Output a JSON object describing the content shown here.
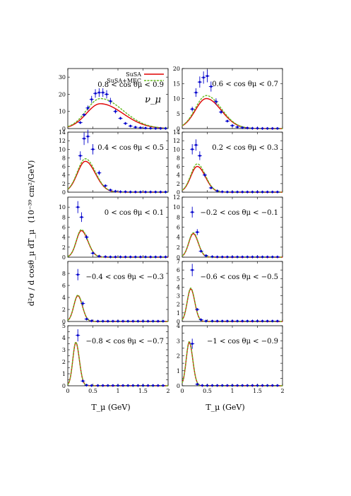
{
  "figure": {
    "ylabel_main": "d²σ / d cosθ_μ dT_μ",
    "ylabel_unit": "(10⁻³⁹ cm²/GeV)",
    "xlabel": "T_μ (GeV)",
    "neutrino_label": "ν_μ",
    "legend": [
      "SuSA",
      "SuSA+MEC"
    ],
    "colors": {
      "susa": "#e00000",
      "mec": "#66bb22",
      "data": "#0000cc"
    }
  },
  "chart_data": [
    {
      "type": "line",
      "panel": "r0c0",
      "title": "0.8 < cos θμ < 0.9",
      "xlim": [
        0,
        2
      ],
      "ylim": [
        0,
        35
      ],
      "yticks": [
        0,
        10,
        20,
        30
      ],
      "xticks": [
        0,
        0.5,
        1,
        1.5,
        2
      ],
      "series": [
        {
          "name": "SuSA",
          "peak_x": 0.65,
          "peak_y": 14.5,
          "width_l": 0.28,
          "width_r": 0.45
        },
        {
          "name": "SuSA+MEC",
          "peak_x": 0.65,
          "peak_y": 17.5,
          "width_l": 0.28,
          "width_r": 0.45
        }
      ],
      "points": [
        [
          0.25,
          3.5
        ],
        [
          0.325,
          8
        ],
        [
          0.4,
          12
        ],
        [
          0.475,
          17
        ],
        [
          0.55,
          20.5
        ],
        [
          0.625,
          21
        ],
        [
          0.7,
          21
        ],
        [
          0.775,
          20
        ],
        [
          0.85,
          16
        ],
        [
          0.95,
          10
        ],
        [
          1.05,
          6
        ],
        [
          1.15,
          3
        ],
        [
          1.25,
          1.5
        ],
        [
          1.35,
          0.8
        ],
        [
          1.45,
          0.5
        ],
        [
          1.55,
          0.3
        ],
        [
          1.65,
          0.2
        ],
        [
          1.75,
          0.1
        ],
        [
          1.85,
          0.1
        ],
        [
          1.95,
          0.1
        ]
      ]
    },
    {
      "type": "line",
      "panel": "r0c1",
      "title": "0.6 < cos θμ < 0.7",
      "xlim": [
        0,
        2
      ],
      "ylim": [
        0,
        20
      ],
      "yticks": [
        0,
        5,
        10,
        15,
        20
      ],
      "xticks": [
        0,
        0.5,
        1,
        1.5,
        2
      ],
      "series": [
        {
          "name": "SuSA",
          "peak_x": 0.48,
          "peak_y": 10,
          "width_l": 0.22,
          "width_r": 0.3
        },
        {
          "name": "SuSA+MEC",
          "peak_x": 0.48,
          "peak_y": 11,
          "width_l": 0.22,
          "width_r": 0.3
        }
      ],
      "points": [
        [
          0.2,
          6.5
        ],
        [
          0.275,
          12
        ],
        [
          0.35,
          15.5
        ],
        [
          0.425,
          17
        ],
        [
          0.5,
          17.5
        ],
        [
          0.575,
          14
        ],
        [
          0.675,
          9
        ],
        [
          0.775,
          5.5
        ],
        [
          0.9,
          2.5
        ],
        [
          1.0,
          1
        ],
        [
          1.1,
          0.5
        ],
        [
          1.2,
          0.3
        ],
        [
          1.3,
          0.2
        ],
        [
          1.4,
          0.1
        ],
        [
          1.5,
          0.1
        ],
        [
          1.6,
          0.05
        ],
        [
          1.7,
          0.05
        ],
        [
          1.8,
          0.05
        ],
        [
          1.9,
          0.05
        ]
      ]
    },
    {
      "type": "line",
      "panel": "r1c0",
      "title": "0.4 < cos θμ < 0.5",
      "xlim": [
        0,
        2
      ],
      "ylim": [
        0,
        14
      ],
      "yticks": [
        0,
        2,
        4,
        6,
        8,
        10,
        12,
        14
      ],
      "xticks": [
        0,
        0.5,
        1,
        1.5,
        2
      ],
      "series": [
        {
          "name": "SuSA",
          "peak_x": 0.35,
          "peak_y": 7.2,
          "width_l": 0.16,
          "width_r": 0.2
        },
        {
          "name": "SuSA+MEC",
          "peak_x": 0.35,
          "peak_y": 7.8,
          "width_l": 0.16,
          "width_r": 0.2
        }
      ],
      "points": [
        [
          0.25,
          8.5
        ],
        [
          0.325,
          12.5
        ],
        [
          0.4,
          13
        ],
        [
          0.5,
          10
        ],
        [
          0.625,
          4.5
        ],
        [
          0.75,
          1.5
        ],
        [
          0.85,
          0.5
        ],
        [
          0.95,
          0.2
        ],
        [
          1.05,
          0.1
        ],
        [
          1.15,
          0.1
        ],
        [
          1.25,
          0.05
        ],
        [
          1.35,
          0.05
        ],
        [
          1.45,
          0.05
        ],
        [
          1.55,
          0.05
        ],
        [
          1.65,
          0.05
        ],
        [
          1.75,
          0.05
        ],
        [
          1.85,
          0.05
        ],
        [
          1.95,
          0.05
        ]
      ]
    },
    {
      "type": "line",
      "panel": "r1c1",
      "title": "0.2 < cos θμ < 0.3",
      "xlim": [
        0,
        2
      ],
      "ylim": [
        0,
        14
      ],
      "yticks": [
        0,
        2,
        4,
        6,
        8,
        10,
        12,
        14
      ],
      "xticks": [
        0,
        0.5,
        1,
        1.5,
        2
      ],
      "series": [
        {
          "name": "SuSA",
          "peak_x": 0.3,
          "peak_y": 6,
          "width_l": 0.13,
          "width_r": 0.16
        },
        {
          "name": "SuSA+MEC",
          "peak_x": 0.3,
          "peak_y": 6.6,
          "width_l": 0.13,
          "width_r": 0.16
        }
      ],
      "points": [
        [
          0.2,
          10
        ],
        [
          0.275,
          11
        ],
        [
          0.35,
          8.5
        ],
        [
          0.45,
          4
        ],
        [
          0.575,
          1
        ],
        [
          0.7,
          0.3
        ],
        [
          0.8,
          0.1
        ],
        [
          0.9,
          0.05
        ],
        [
          1.0,
          0.05
        ],
        [
          1.1,
          0.05
        ],
        [
          1.2,
          0.05
        ],
        [
          1.3,
          0.05
        ],
        [
          1.4,
          0.05
        ],
        [
          1.5,
          0.05
        ],
        [
          1.6,
          0.05
        ],
        [
          1.7,
          0.05
        ],
        [
          1.8,
          0.05
        ],
        [
          1.9,
          0.05
        ]
      ]
    },
    {
      "type": "line",
      "panel": "r2c0",
      "title": "0 < cos θμ < 0.1",
      "xlim": [
        0,
        2
      ],
      "ylim": [
        0,
        12
      ],
      "yticks": [
        0,
        2,
        4,
        6,
        8,
        10
      ],
      "xticks": [
        0,
        0.5,
        1,
        1.5,
        2
      ],
      "series": [
        {
          "name": "SuSA",
          "peak_x": 0.27,
          "peak_y": 5.3,
          "width_l": 0.1,
          "width_r": 0.13
        },
        {
          "name": "SuSA+MEC",
          "peak_x": 0.27,
          "peak_y": 5.5,
          "width_l": 0.1,
          "width_r": 0.13
        }
      ],
      "points": [
        [
          0.2,
          10
        ],
        [
          0.275,
          8
        ],
        [
          0.375,
          4
        ],
        [
          0.5,
          0.8
        ],
        [
          0.625,
          0.2
        ],
        [
          0.75,
          0.1
        ],
        [
          0.85,
          0.05
        ],
        [
          0.95,
          0.05
        ],
        [
          1.05,
          0.05
        ],
        [
          1.15,
          0.05
        ],
        [
          1.25,
          0.05
        ],
        [
          1.35,
          0.05
        ],
        [
          1.45,
          0.05
        ],
        [
          1.55,
          0.05
        ],
        [
          1.65,
          0.05
        ],
        [
          1.75,
          0.05
        ],
        [
          1.85,
          0.05
        ],
        [
          1.95,
          0.05
        ]
      ]
    },
    {
      "type": "line",
      "panel": "r2c1",
      "title": "−0.2 < cos θμ < −0.1",
      "xlim": [
        0,
        2
      ],
      "ylim": [
        0,
        12
      ],
      "yticks": [
        0,
        2,
        4,
        6,
        8,
        10,
        12
      ],
      "xticks": [
        0,
        0.5,
        1,
        1.5,
        2
      ],
      "series": [
        {
          "name": "SuSA",
          "peak_x": 0.22,
          "peak_y": 4.7,
          "width_l": 0.09,
          "width_r": 0.1
        },
        {
          "name": "SuSA+MEC",
          "peak_x": 0.22,
          "peak_y": 4.9,
          "width_l": 0.09,
          "width_r": 0.1
        }
      ],
      "points": [
        [
          0.2,
          9
        ],
        [
          0.3,
          5
        ],
        [
          0.375,
          1.2
        ],
        [
          0.475,
          0.3
        ],
        [
          0.6,
          0.1
        ],
        [
          0.7,
          0.05
        ],
        [
          0.8,
          0.05
        ],
        [
          0.9,
          0.05
        ],
        [
          1.0,
          0.05
        ],
        [
          1.1,
          0.05
        ],
        [
          1.2,
          0.05
        ],
        [
          1.3,
          0.05
        ],
        [
          1.4,
          0.05
        ],
        [
          1.5,
          0.05
        ],
        [
          1.6,
          0.05
        ],
        [
          1.7,
          0.05
        ],
        [
          1.8,
          0.05
        ],
        [
          1.9,
          0.05
        ]
      ]
    },
    {
      "type": "line",
      "panel": "r3c0",
      "title": "−0.4 < cos θμ < −0.3",
      "xlim": [
        0,
        2
      ],
      "ylim": [
        0,
        10
      ],
      "yticks": [
        0,
        2,
        4,
        6,
        8
      ],
      "xticks": [
        0,
        0.5,
        1,
        1.5,
        2
      ],
      "series": [
        {
          "name": "SuSA",
          "peak_x": 0.2,
          "peak_y": 4.3,
          "width_l": 0.08,
          "width_r": 0.09
        },
        {
          "name": "SuSA+MEC",
          "peak_x": 0.2,
          "peak_y": 4.4,
          "width_l": 0.08,
          "width_r": 0.09
        }
      ],
      "points": [
        [
          0.2,
          7.8
        ],
        [
          0.3,
          3
        ],
        [
          0.375,
          0.4
        ],
        [
          0.475,
          0.1
        ],
        [
          0.6,
          0.05
        ],
        [
          0.7,
          0.05
        ],
        [
          0.8,
          0.05
        ],
        [
          0.9,
          0.05
        ],
        [
          1.0,
          0.05
        ],
        [
          1.1,
          0.05
        ],
        [
          1.2,
          0.05
        ],
        [
          1.3,
          0.05
        ],
        [
          1.4,
          0.05
        ],
        [
          1.5,
          0.05
        ],
        [
          1.6,
          0.05
        ],
        [
          1.7,
          0.05
        ],
        [
          1.8,
          0.05
        ],
        [
          1.9,
          0.05
        ]
      ]
    },
    {
      "type": "line",
      "panel": "r3c1",
      "title": "−0.6 < cos θμ < −0.5",
      "xlim": [
        0,
        2
      ],
      "ylim": [
        0,
        7
      ],
      "yticks": [
        0,
        1,
        2,
        3,
        4,
        5,
        6,
        7
      ],
      "xticks": [
        0,
        0.5,
        1,
        1.5,
        2
      ],
      "series": [
        {
          "name": "SuSA",
          "peak_x": 0.17,
          "peak_y": 3.8,
          "width_l": 0.07,
          "width_r": 0.08
        },
        {
          "name": "SuSA+MEC",
          "peak_x": 0.17,
          "peak_y": 3.9,
          "width_l": 0.07,
          "width_r": 0.08
        }
      ],
      "points": [
        [
          0.2,
          6
        ],
        [
          0.3,
          1.4
        ],
        [
          0.375,
          0.2
        ],
        [
          0.475,
          0.05
        ],
        [
          0.6,
          0.05
        ],
        [
          0.7,
          0.05
        ],
        [
          0.8,
          0.05
        ],
        [
          0.9,
          0.05
        ],
        [
          1.0,
          0.05
        ],
        [
          1.1,
          0.05
        ],
        [
          1.2,
          0.05
        ],
        [
          1.3,
          0.05
        ],
        [
          1.4,
          0.05
        ],
        [
          1.5,
          0.05
        ],
        [
          1.6,
          0.05
        ],
        [
          1.7,
          0.05
        ],
        [
          1.8,
          0.05
        ],
        [
          1.9,
          0.05
        ]
      ]
    },
    {
      "type": "line",
      "panel": "r4c0",
      "title": "−0.8 < cos θμ < −0.7",
      "xlim": [
        0,
        2
      ],
      "ylim": [
        0,
        5
      ],
      "yticks": [
        0,
        0.5,
        1,
        1.5,
        2,
        2.5,
        3,
        3.5,
        4,
        4.5,
        5
      ],
      "xticks": [
        0,
        0.5,
        1,
        1.5,
        2
      ],
      "series": [
        {
          "name": "SuSA",
          "peak_x": 0.16,
          "peak_y": 3.6,
          "width_l": 0.06,
          "width_r": 0.07
        },
        {
          "name": "SuSA+MEC",
          "peak_x": 0.16,
          "peak_y": 3.65,
          "width_l": 0.06,
          "width_r": 0.07
        }
      ],
      "points": [
        [
          0.2,
          4.2
        ],
        [
          0.3,
          0.4
        ],
        [
          0.375,
          0.05
        ],
        [
          0.475,
          0.02
        ],
        [
          0.6,
          0.02
        ],
        [
          0.7,
          0.02
        ],
        [
          0.8,
          0.02
        ],
        [
          0.9,
          0.02
        ],
        [
          1.0,
          0.02
        ],
        [
          1.1,
          0.02
        ],
        [
          1.2,
          0.02
        ],
        [
          1.3,
          0.02
        ],
        [
          1.4,
          0.02
        ],
        [
          1.5,
          0.02
        ],
        [
          1.6,
          0.02
        ],
        [
          1.7,
          0.02
        ],
        [
          1.8,
          0.02
        ],
        [
          1.9,
          0.02
        ]
      ]
    },
    {
      "type": "line",
      "panel": "r4c1",
      "title": "−1 < cos θμ < −0.9",
      "xlim": [
        0,
        2
      ],
      "ylim": [
        0,
        4
      ],
      "yticks": [
        0,
        0.5,
        1,
        1.5,
        2,
        2.5,
        3,
        3.5,
        4
      ],
      "xticks": [
        0,
        0.5,
        1,
        1.5,
        2
      ],
      "series": [
        {
          "name": "SuSA",
          "peak_x": 0.14,
          "peak_y": 2.9,
          "width_l": 0.06,
          "width_r": 0.07
        },
        {
          "name": "SuSA+MEC",
          "peak_x": 0.14,
          "peak_y": 2.95,
          "width_l": 0.06,
          "width_r": 0.07
        }
      ],
      "points": [
        [
          0.2,
          2.8
        ],
        [
          0.3,
          0.1
        ],
        [
          0.4,
          0.02
        ],
        [
          0.5,
          0.02
        ],
        [
          0.6,
          0.02
        ],
        [
          0.7,
          0.02
        ],
        [
          0.8,
          0.02
        ],
        [
          0.9,
          0.02
        ],
        [
          1.0,
          0.02
        ],
        [
          1.1,
          0.02
        ],
        [
          1.2,
          0.02
        ],
        [
          1.3,
          0.02
        ],
        [
          1.4,
          0.02
        ],
        [
          1.5,
          0.02
        ],
        [
          1.6,
          0.02
        ],
        [
          1.7,
          0.02
        ],
        [
          1.8,
          0.02
        ],
        [
          1.9,
          0.02
        ]
      ]
    }
  ]
}
